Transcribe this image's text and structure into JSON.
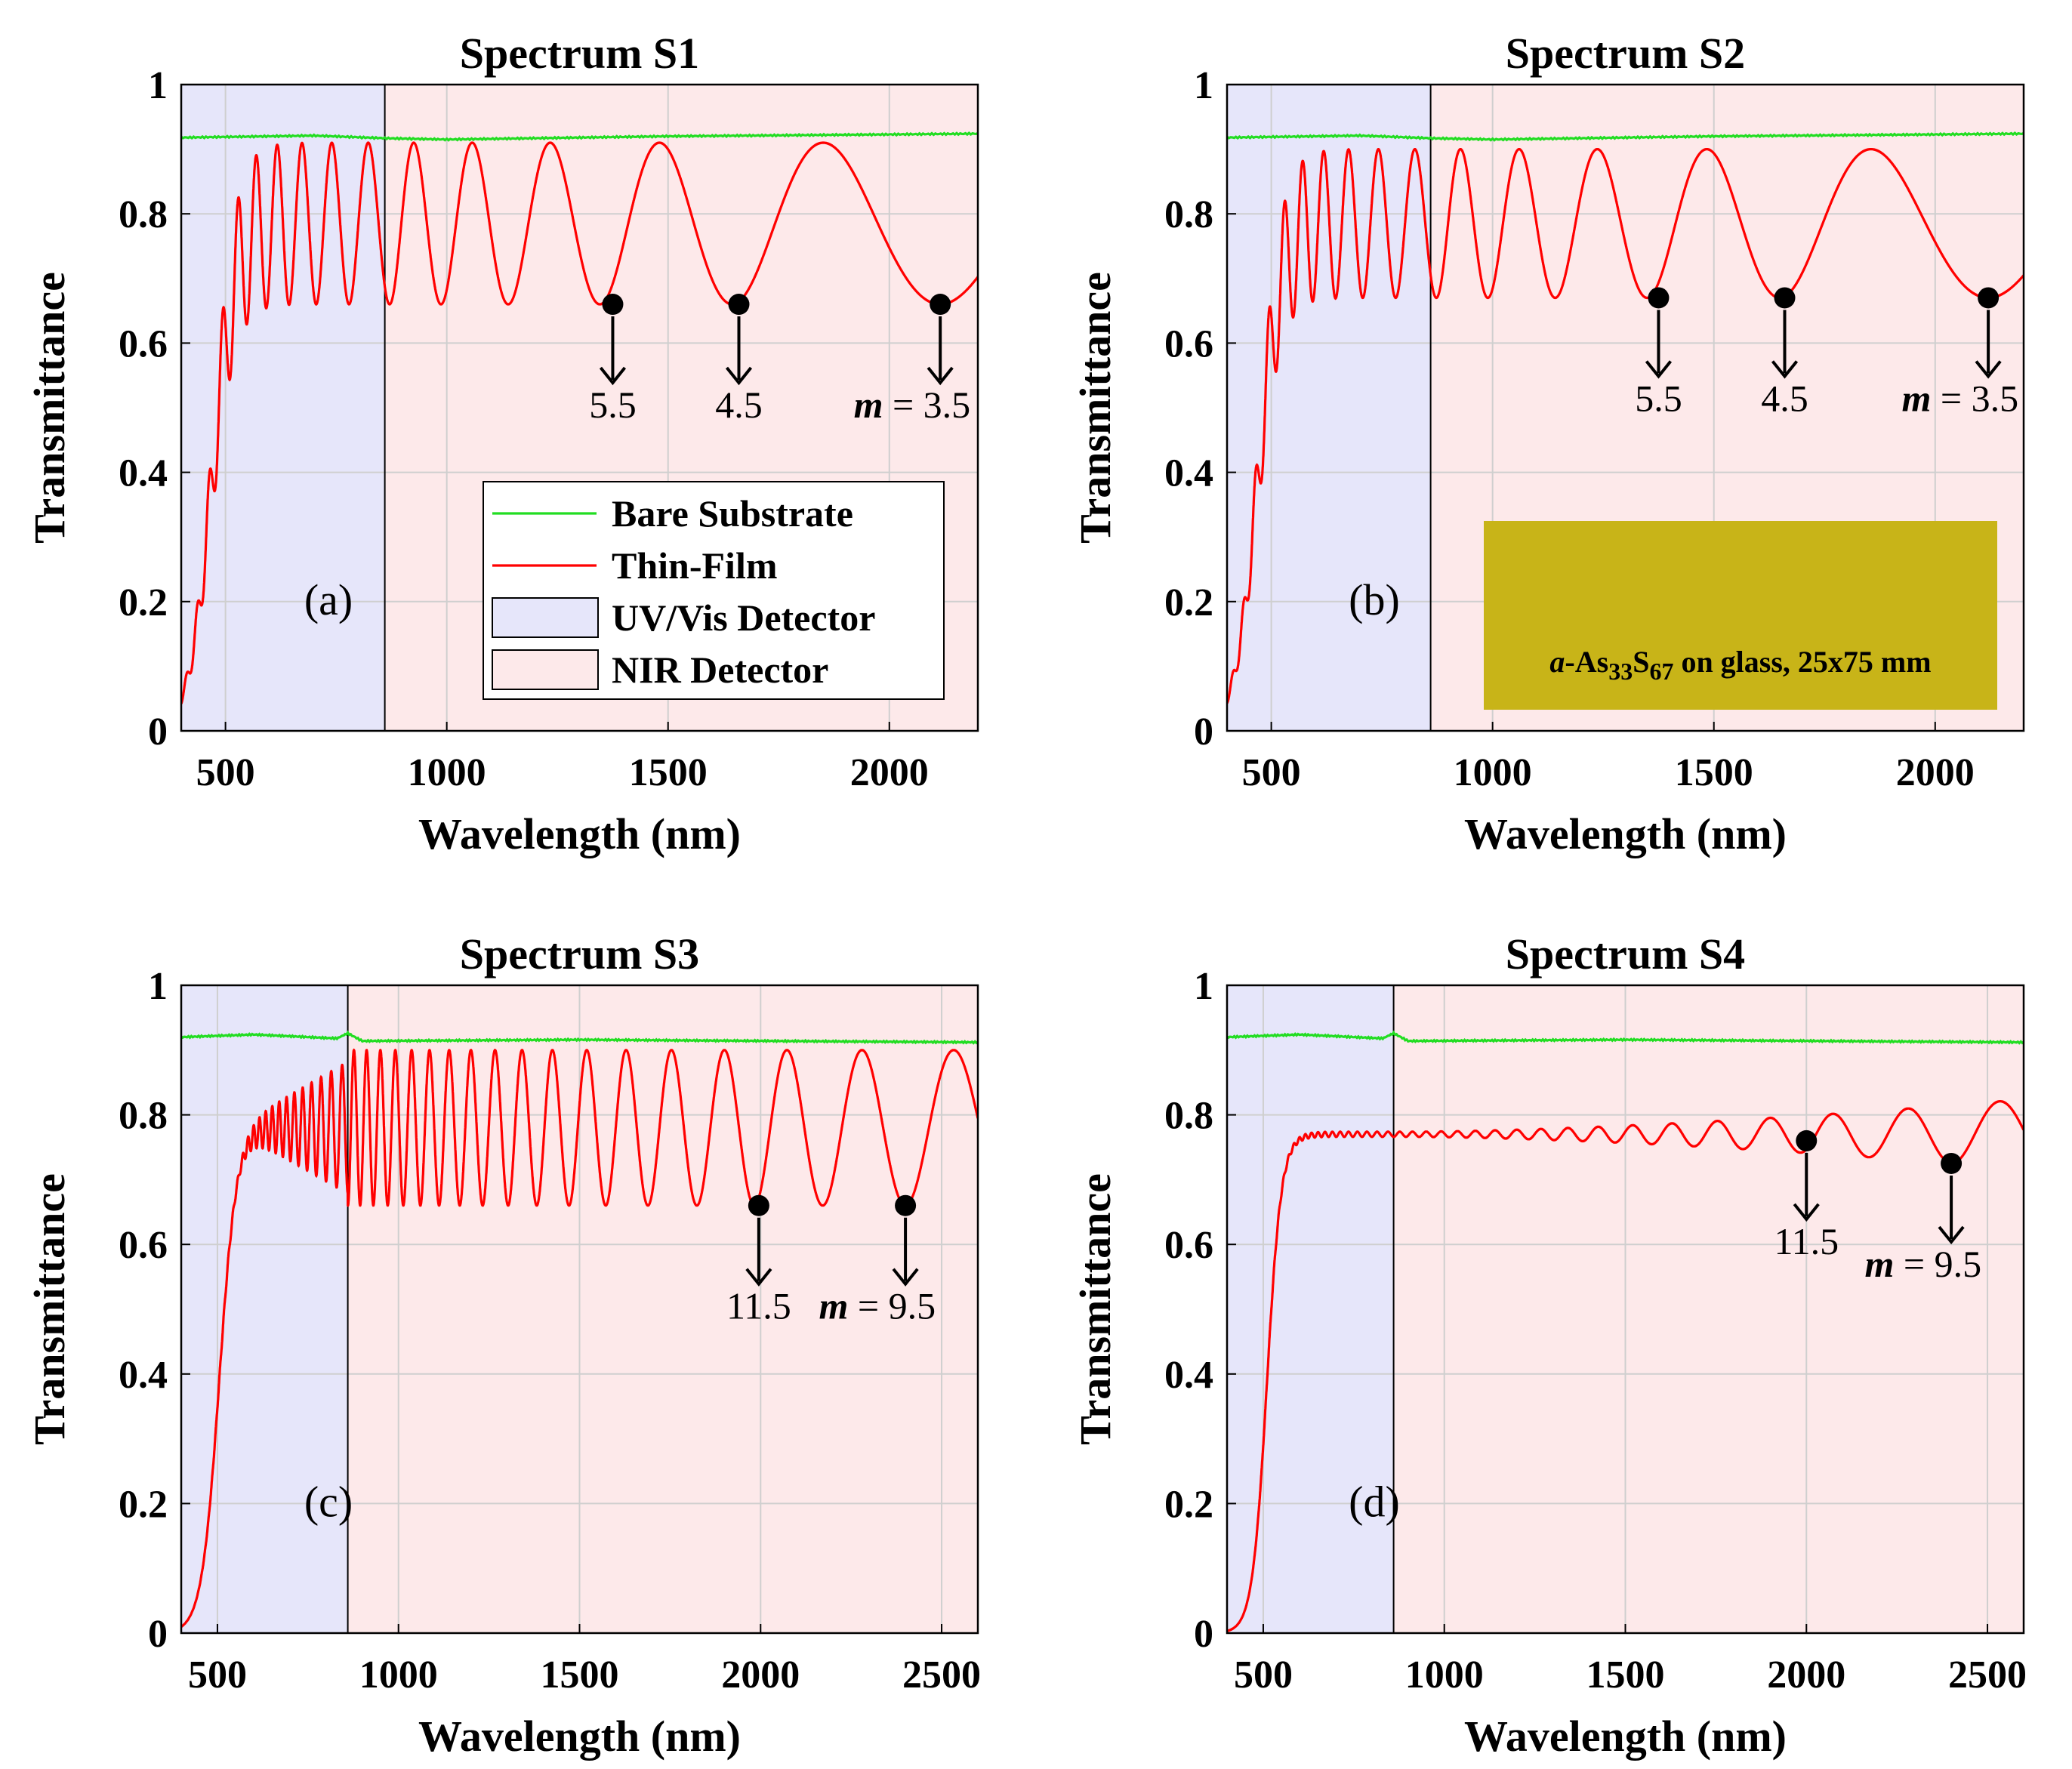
{
  "figure": {
    "x_label": "Wavelength (nm)",
    "y_label": "Transmittance",
    "y_ticks": [
      "0",
      "0.2",
      "0.4",
      "0.6",
      "0.8",
      "1"
    ],
    "legend": {
      "bare": "Bare Substrate",
      "film": "Thin-Film",
      "uvvis": "UV/Vis Detector",
      "nir": "NIR Detector"
    },
    "photo": {
      "text_a": "a",
      "text_as": "-As",
      "sub33": "33",
      "text_s": "S",
      "sub67": "67",
      "text_rest": " on glass, 25x75 mm"
    },
    "colors": {
      "substrate": "#22dd22",
      "film": "#ff0000",
      "uvvis_bg": "#e6e6fa",
      "nir_bg": "#fde9ea",
      "photo": "#c8b418"
    }
  },
  "chart_data": [
    {
      "type": "line",
      "title": "Spectrum S1",
      "panel_label": "(a)",
      "xlim": [
        400,
        2200
      ],
      "ylim": [
        0,
        1
      ],
      "detector_split": 860,
      "x_ticks": [
        500,
        1000,
        1500,
        2000
      ],
      "x_tick_labels": [
        "500",
        "1000",
        "1500",
        "2000"
      ],
      "series": [
        {
          "name": "Bare Substrate",
          "points": [
            [
              400,
              0.918
            ],
            [
              700,
              0.921
            ],
            [
              860,
              0.917
            ],
            [
              1000,
              0.915
            ],
            [
              1500,
              0.92
            ],
            [
              2200,
              0.924
            ]
          ]
        },
        {
          "name": "Thin-Film",
          "model": {
            "edge": 470,
            "width": 26,
            "mid": 0.785,
            "amp": 0.125,
            "floor": 0.0,
            "min_m": 3.5,
            "min_x": 2115
          }
        }
      ],
      "minima": [
        {
          "x": 1375,
          "y": 0.66,
          "label": "5.5"
        },
        {
          "x": 1660,
          "y": 0.66,
          "label": "4.5"
        },
        {
          "x": 2115,
          "y": 0.66,
          "label": "3.5",
          "prefix": true
        }
      ]
    },
    {
      "type": "line",
      "title": "Spectrum S2",
      "panel_label": "(b)",
      "xlim": [
        400,
        2200
      ],
      "ylim": [
        0,
        1
      ],
      "detector_split": 860,
      "x_ticks": [
        500,
        1000,
        1500,
        2000
      ],
      "x_tick_labels": [
        "500",
        "1000",
        "1500",
        "2000"
      ],
      "series": [
        {
          "name": "Bare Substrate",
          "points": [
            [
              400,
              0.918
            ],
            [
              700,
              0.921
            ],
            [
              860,
              0.917
            ],
            [
              1000,
              0.915
            ],
            [
              1500,
              0.92
            ],
            [
              2200,
              0.924
            ]
          ]
        },
        {
          "name": "Thin-Film",
          "model": {
            "edge": 470,
            "width": 26,
            "mid": 0.785,
            "amp": 0.115,
            "floor": 0.0,
            "min_m": 3.5,
            "min_x": 2120
          }
        }
      ],
      "minima": [
        {
          "x": 1375,
          "y": 0.67,
          "label": "5.5"
        },
        {
          "x": 1660,
          "y": 0.67,
          "label": "4.5"
        },
        {
          "x": 2120,
          "y": 0.67,
          "label": "3.5",
          "prefix": true
        }
      ]
    },
    {
      "type": "line",
      "title": "Spectrum S3",
      "panel_label": "(c)",
      "xlim": [
        400,
        2600
      ],
      "ylim": [
        0,
        1
      ],
      "detector_split": 860,
      "x_ticks": [
        500,
        1000,
        1500,
        2000,
        2500
      ],
      "x_tick_labels": [
        "500",
        "1000",
        "1500",
        "2000",
        "2500"
      ],
      "series": [
        {
          "name": "Bare Substrate",
          "points": [
            [
              400,
              0.92
            ],
            [
              600,
              0.924
            ],
            [
              830,
              0.918
            ],
            [
              860,
              0.926
            ],
            [
              900,
              0.914
            ],
            [
              1500,
              0.916
            ],
            [
              2600,
              0.912
            ]
          ]
        },
        {
          "name": "Thin-Film",
          "model": {
            "edge": 505,
            "width": 24,
            "mid": 0.78,
            "amp": 0.12,
            "floor": 0.0,
            "min_m": 9.5,
            "min_x": 2400,
            "damp_until": 860,
            "damp_start": 560
          }
        }
      ],
      "minima": [
        {
          "x": 1995,
          "y": 0.66,
          "label": "11.5"
        },
        {
          "x": 2400,
          "y": 0.66,
          "label": "9.5",
          "prefix": true
        }
      ]
    },
    {
      "type": "line",
      "title": "Spectrum S4",
      "panel_label": "(d)",
      "xlim": [
        400,
        2600
      ],
      "ylim": [
        0,
        1
      ],
      "detector_split": 860,
      "x_ticks": [
        500,
        1000,
        1500,
        2000,
        2500
      ],
      "x_tick_labels": [
        "500",
        "1000",
        "1500",
        "2000",
        "2500"
      ],
      "series": [
        {
          "name": "Bare Substrate",
          "points": [
            [
              400,
              0.92
            ],
            [
              600,
              0.924
            ],
            [
              830,
              0.918
            ],
            [
              860,
              0.926
            ],
            [
              900,
              0.914
            ],
            [
              1500,
              0.916
            ],
            [
              2600,
              0.912
            ]
          ]
        },
        {
          "name": "Thin-Film",
          "model": {
            "edge": 510,
            "width": 20,
            "mid": 0.77,
            "amp": 0.0,
            "floor": 0.0,
            "min_m": 9.5,
            "min_x": 2400,
            "grow_from": 900,
            "grow_to": 2600,
            "amp_end": 0.05
          }
        }
      ],
      "minima": [
        {
          "x": 2000,
          "y": 0.76,
          "label": "11.5"
        },
        {
          "x": 2400,
          "y": 0.725,
          "label": "9.5",
          "prefix": true
        }
      ]
    }
  ]
}
